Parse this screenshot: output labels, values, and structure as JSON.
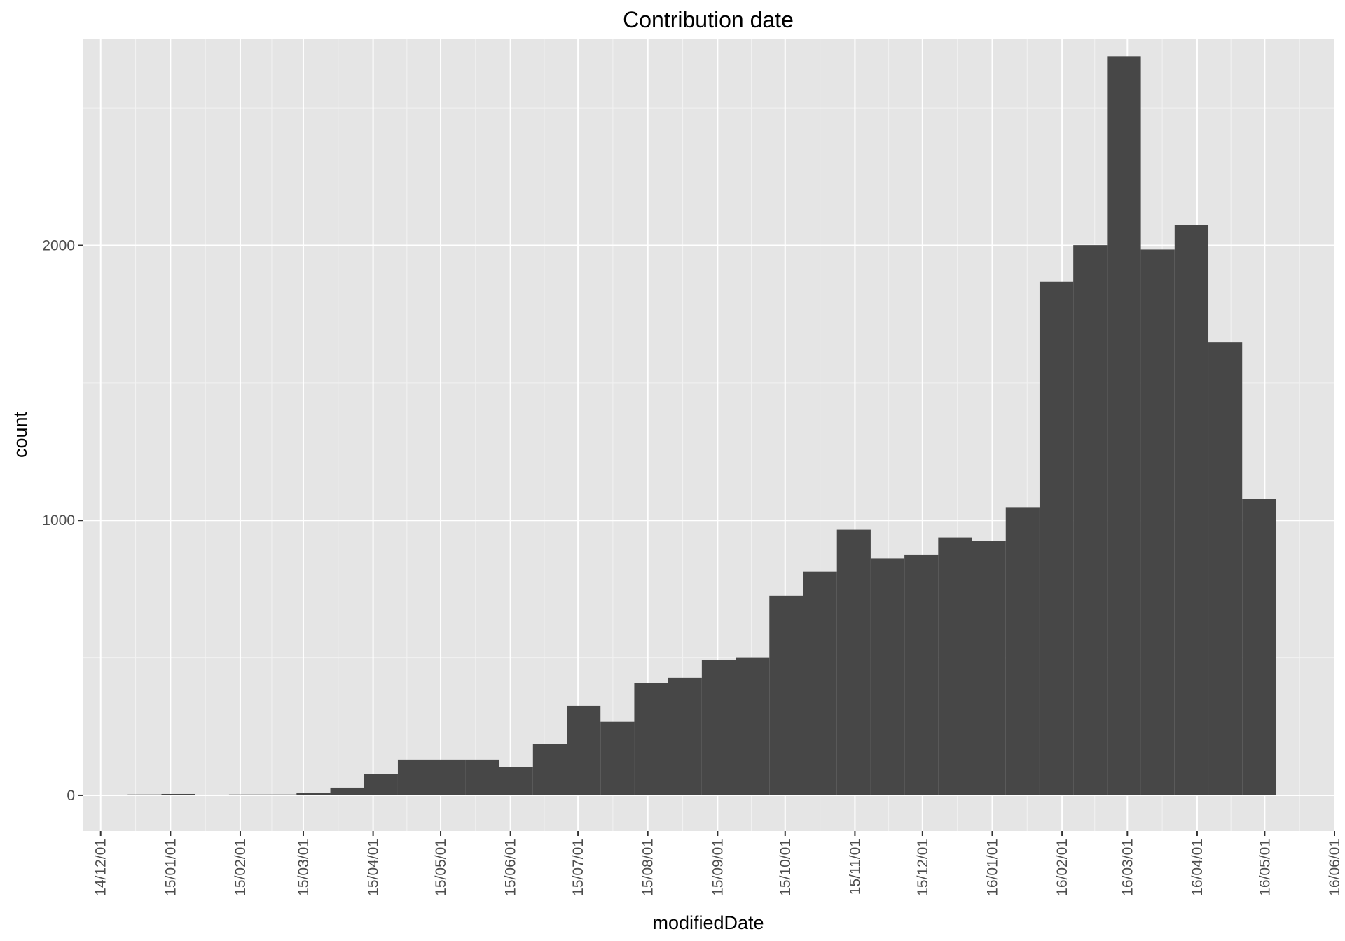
{
  "chart_data": {
    "type": "bar",
    "title": "Contribution date",
    "xlabel": "modifiedDate",
    "ylabel": "count",
    "x_tick_labels": [
      "14/12/01",
      "15/01/01",
      "15/02/01",
      "15/03/01",
      "15/04/01",
      "15/05/01",
      "15/06/01",
      "15/07/01",
      "15/08/01",
      "15/09/01",
      "15/10/01",
      "15/11/01",
      "15/12/01",
      "16/01/01",
      "16/02/01",
      "16/03/01",
      "16/04/01",
      "16/05/01",
      "16/06/01"
    ],
    "y_tick_labels": [
      "0",
      "1000",
      "2000"
    ],
    "y_ticks": [
      0,
      1000,
      2000
    ],
    "ylim": [
      -130,
      2750
    ],
    "xlim": [
      "2014-11-23",
      "2016-06-01"
    ],
    "grid": true,
    "bin_width_days": 15,
    "bins": [
      {
        "start": "2014-12-13",
        "count": 3
      },
      {
        "start": "2014-12-28",
        "count": 5
      },
      {
        "start": "2015-01-12",
        "count": 0
      },
      {
        "start": "2015-01-27",
        "count": 3
      },
      {
        "start": "2015-02-11",
        "count": 1
      },
      {
        "start": "2015-02-26",
        "count": 10
      },
      {
        "start": "2015-03-13",
        "count": 28
      },
      {
        "start": "2015-03-28",
        "count": 78
      },
      {
        "start": "2015-04-12",
        "count": 130
      },
      {
        "start": "2015-04-27",
        "count": 130
      },
      {
        "start": "2015-05-12",
        "count": 130
      },
      {
        "start": "2015-05-27",
        "count": 103
      },
      {
        "start": "2015-06-11",
        "count": 187
      },
      {
        "start": "2015-06-26",
        "count": 326
      },
      {
        "start": "2015-07-11",
        "count": 268
      },
      {
        "start": "2015-07-26",
        "count": 408
      },
      {
        "start": "2015-08-10",
        "count": 428
      },
      {
        "start": "2015-08-25",
        "count": 493
      },
      {
        "start": "2015-09-09",
        "count": 500
      },
      {
        "start": "2015-09-24",
        "count": 726
      },
      {
        "start": "2015-10-09",
        "count": 813
      },
      {
        "start": "2015-10-24",
        "count": 966
      },
      {
        "start": "2015-11-08",
        "count": 862
      },
      {
        "start": "2015-11-23",
        "count": 876
      },
      {
        "start": "2015-12-08",
        "count": 938
      },
      {
        "start": "2015-12-23",
        "count": 925
      },
      {
        "start": "2016-01-07",
        "count": 1048
      },
      {
        "start": "2016-01-22",
        "count": 1867
      },
      {
        "start": "2016-02-06",
        "count": 2001
      },
      {
        "start": "2016-02-21",
        "count": 2688
      },
      {
        "start": "2016-03-07",
        "count": 1985
      },
      {
        "start": "2016-03-22",
        "count": 2073
      },
      {
        "start": "2016-04-06",
        "count": 1647
      },
      {
        "start": "2016-04-21",
        "count": 1077
      }
    ],
    "colors": {
      "panel_background": "#e5e5e5",
      "bar_fill": "#474747",
      "grid": "#ffffff",
      "text": "#000000",
      "tick_text": "#4d4d4d"
    }
  }
}
